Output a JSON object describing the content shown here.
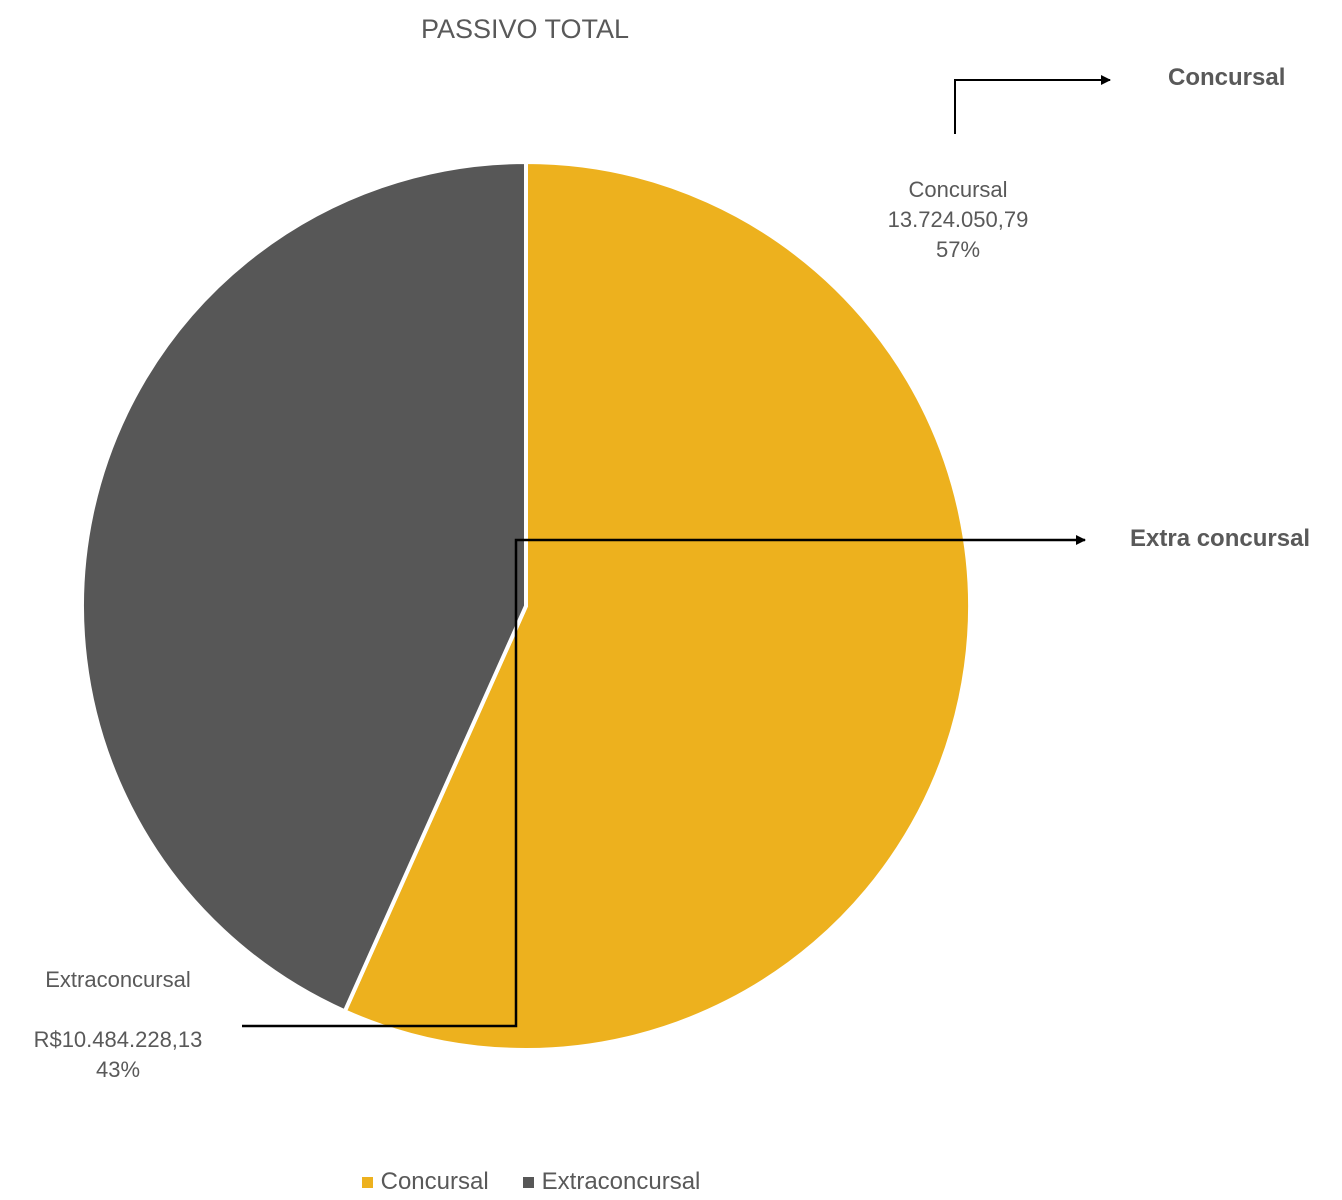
{
  "chart_data": {
    "type": "pie",
    "title": "PASSIVO TOTAL",
    "categories": [
      "Concursal",
      "Extraconcursal"
    ],
    "values": [
      13724050.79,
      10484228.13
    ],
    "percentages": [
      57,
      43
    ],
    "colors": [
      "#EDB11E",
      "#575757"
    ],
    "legend_position": "bottom",
    "data_labels": [
      {
        "category": "Concursal",
        "value_text": "13.724.050,79",
        "percent_text": "57%"
      },
      {
        "category": "Extraconcursal",
        "value_text": "R$10.484.228,13",
        "percent_text": "43%"
      }
    ]
  },
  "annotations": {
    "concursal": "Concursal",
    "extra_concursal": "Extra concursal"
  },
  "legend": {
    "items": [
      {
        "label": "Concursal",
        "color": "#EDB11E"
      },
      {
        "label": "Extraconcursal",
        "color": "#575757"
      }
    ]
  }
}
